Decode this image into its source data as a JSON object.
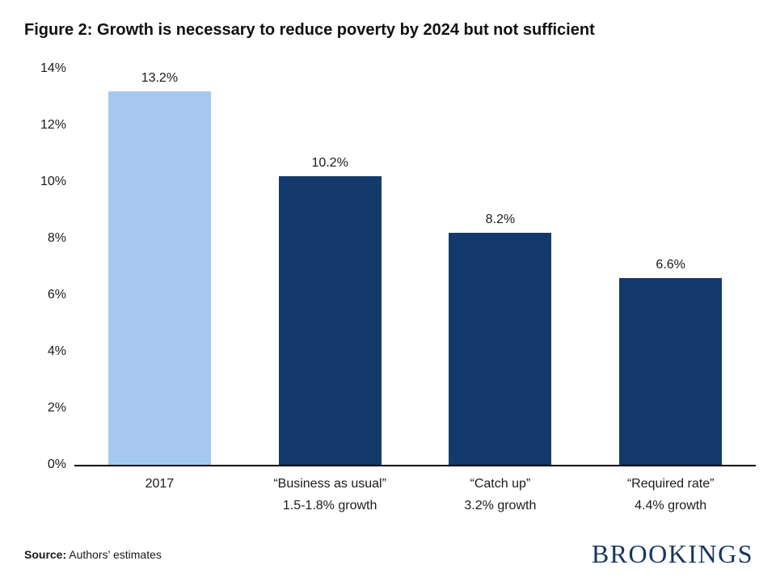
{
  "title": "Figure 2: Growth is necessary to reduce poverty by 2024 but not sufficient",
  "chart_data": {
    "type": "bar",
    "title": "Figure 2: Growth is necessary to reduce poverty by 2024 but not sufficient",
    "categories": [
      "2017",
      "“Business as usual”",
      "“Catch up”",
      "“Required rate”"
    ],
    "subcategories": [
      "",
      "1.5-1.8% growth",
      "3.2% growth",
      "4.4% growth"
    ],
    "values": [
      13.2,
      10.2,
      8.2,
      6.6
    ],
    "value_labels": [
      "13.2%",
      "10.2%",
      "8.2%",
      "6.6%"
    ],
    "bar_colors": [
      "#a6c8f0",
      "#143a6b",
      "#143a6b",
      "#143a6b"
    ],
    "xlabel": "",
    "ylabel": "",
    "ylim": [
      0,
      14
    ],
    "yticks": [
      "0%",
      "2%",
      "4%",
      "6%",
      "8%",
      "10%",
      "12%",
      "14%"
    ],
    "grid": false,
    "legend": "none"
  },
  "colors": {
    "highlight_bar": "#a6c8f0",
    "primary_bar": "#143a6b",
    "logo_navy": "#17365f"
  },
  "footer": {
    "source_label": "Source:",
    "source_text": " Authors’ estimates",
    "logo_text": "BROOKINGS"
  }
}
